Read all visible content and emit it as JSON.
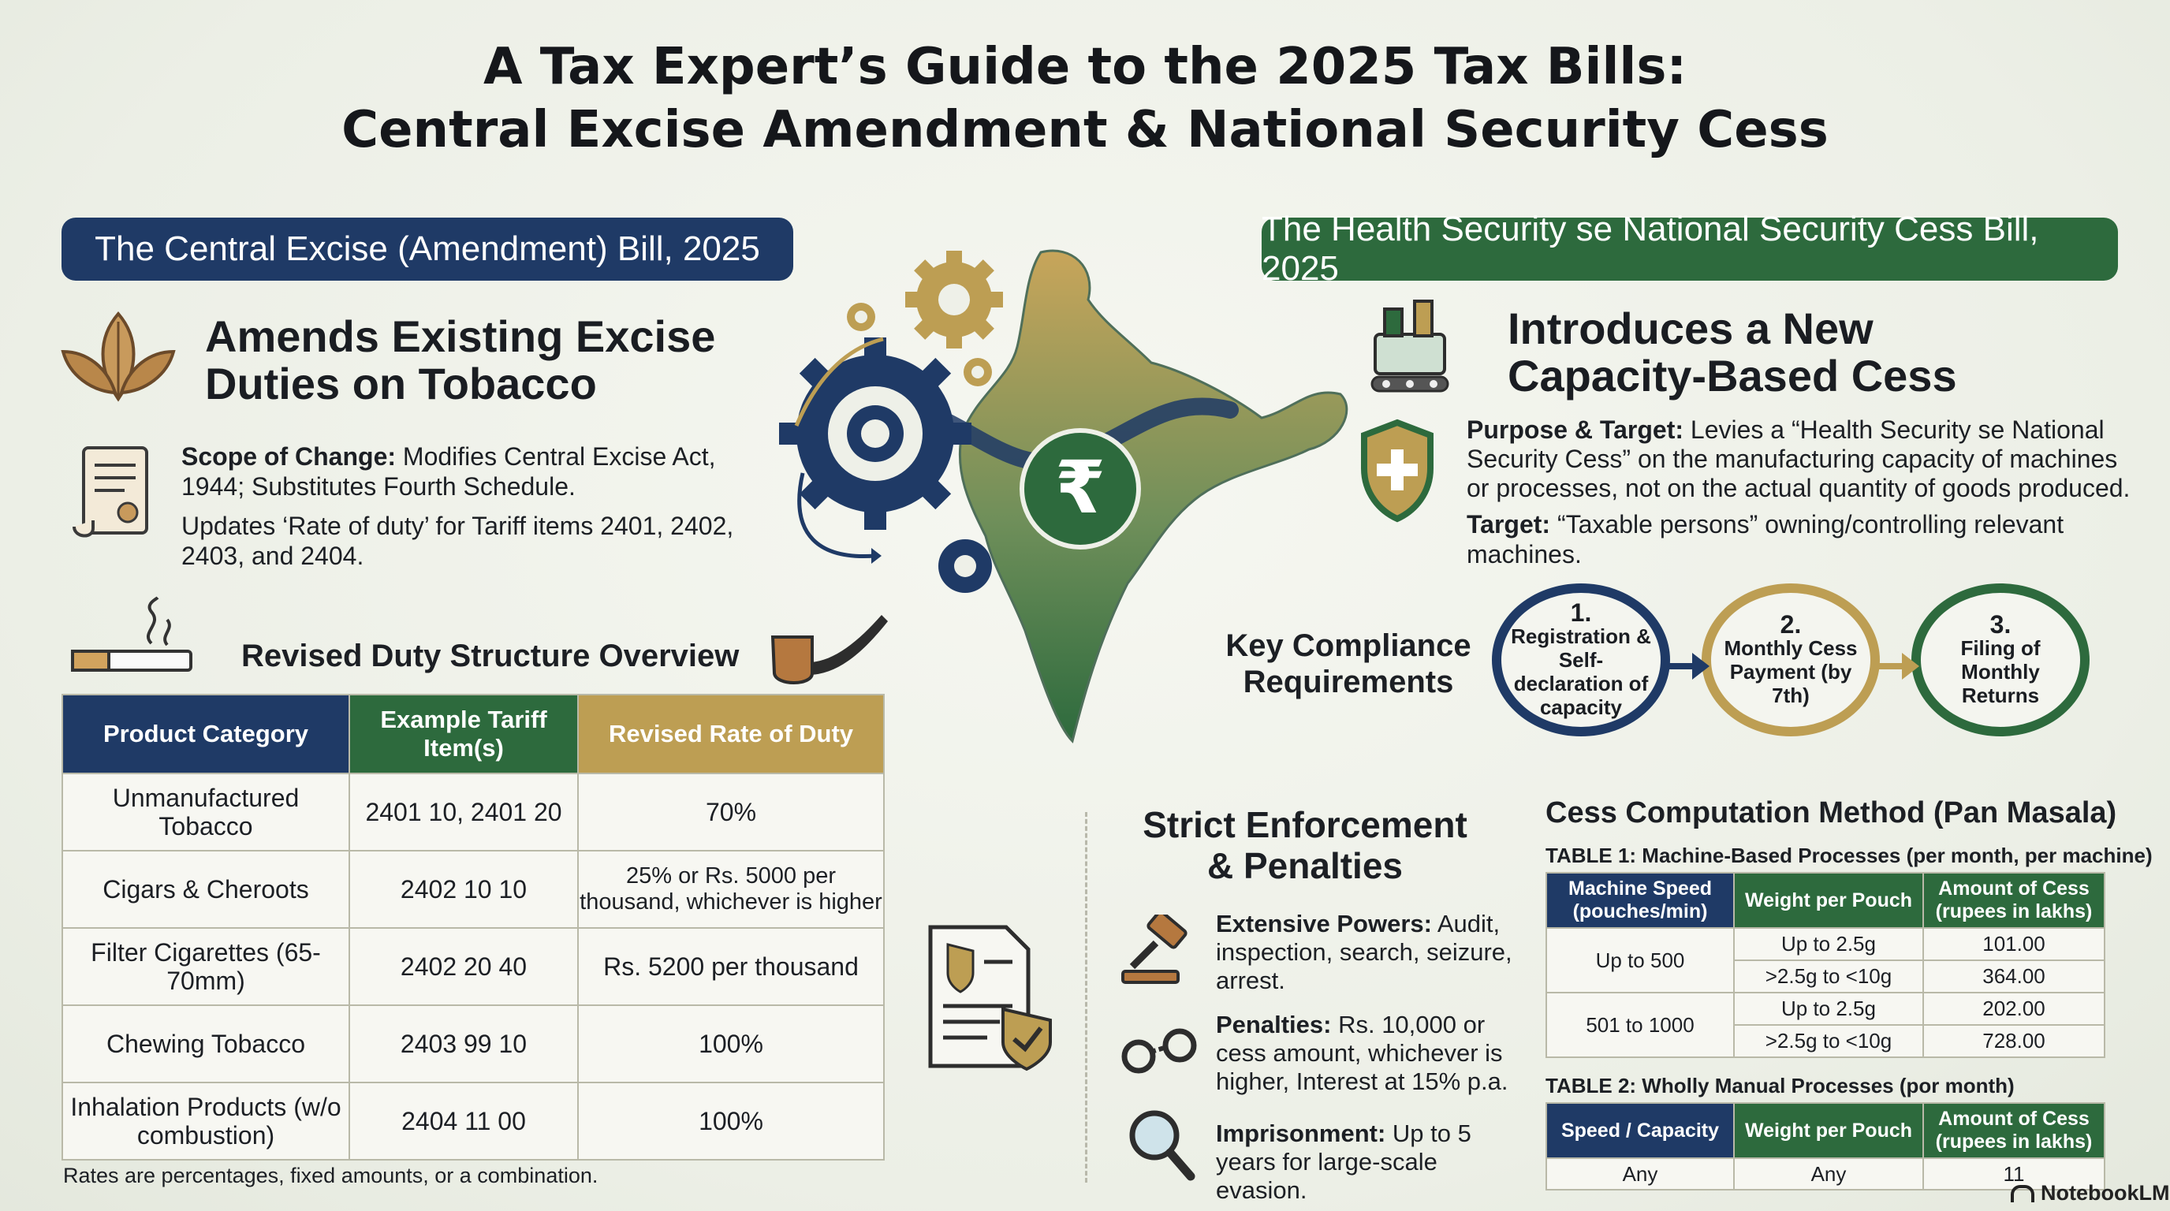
{
  "title": {
    "line1": "A Tax Expert’s Guide to the 2025 Tax Bills:",
    "line2": "Central Excise Amendment & National Security Cess"
  },
  "left": {
    "banner": "The Central Excise (Amendment) Bill, 2025",
    "heading": {
      "line1": "Amends Existing Excise",
      "line2": "Duties on Tobacco"
    },
    "scope_label": "Scope of Change:",
    "scope_text": "Modifies Central Excise Act,",
    "scope_text2": "1944; Substitutes Fourth Schedule.",
    "updates_line1": "Updates ‘Rate of duty’ for Tariff items 2401, 2402,",
    "updates_line2": "2403, and 2404.",
    "table_title": "Revised Duty Structure Overview",
    "table_headers": [
      "Product Category",
      "Example Tariff Item(s)",
      "Revised Rate of Duty"
    ],
    "table_rows": [
      {
        "category": "Unmanufactured Tobacco",
        "tariff": "2401 10, 2401 20",
        "rate": "70%"
      },
      {
        "category": "Cigars & Cheroots",
        "tariff": "2402 10 10",
        "rate": "25% or Rs. 5000 per thousand, whichever is higher"
      },
      {
        "category": "Filter Cigarettes (65-70mm)",
        "tariff": "2402 20 40",
        "rate": "Rs. 5200 per thousand"
      },
      {
        "category": "Chewing Tobacco",
        "tariff": "2403 99 10",
        "rate": "100%"
      },
      {
        "category": "Inhalation Products (w/o combustion)",
        "tariff": "2404 11 00",
        "rate": "100%"
      }
    ],
    "footnote": "Rates are percentages, fixed amounts, or a combination."
  },
  "right": {
    "banner": "The Health Security se National Security Cess Bill, 2025",
    "heading": {
      "line1": "Introduces a New",
      "line2": "Capacity-Based Cess"
    },
    "purpose_label": "Purpose & Target:",
    "purpose_l1": "Levies a “Health Security se National",
    "purpose_l2": "Security Cess” on the manufacturing capacity of machines",
    "purpose_l3": "or processes, not on the actual quantity of goods produced.",
    "target_label": "Target:",
    "target_text": "“Taxable persons” owning/controlling relevant machines.",
    "compliance_title": {
      "line1": "Key Compliance",
      "line2": "Requirements"
    },
    "steps": [
      {
        "num": "1.",
        "text": "Registration & Self-declaration of capacity"
      },
      {
        "num": "2.",
        "text": "Monthly Cess Payment (by 7th)"
      },
      {
        "num": "3.",
        "text": "Filing of Monthly Returns"
      }
    ],
    "enforcement_title": {
      "line1": "Strict Enforcement",
      "line2": "& Penalties"
    },
    "enforcement": [
      {
        "label": "Extensive Powers:",
        "text": "Audit, inspection, search, seizure, arrest."
      },
      {
        "label": "Penalties:",
        "text": "Rs. 10,000 or cess amount, whichever is higher, Interest at 15% p.a."
      },
      {
        "label": "Imprisonment:",
        "text": "Up to 5 years for large-scale evasion."
      }
    ],
    "cess_title": "Cess Computation Method (Pan Masala)",
    "table1_title": "TABLE 1: Machine-Based Processes (per month, per machine)",
    "table1_headers": [
      "Machine Speed (pouches/min)",
      "Weight per Pouch",
      "Amount of Cess (rupees in lakhs)"
    ],
    "table1_rows": [
      {
        "speed": "Up to 500",
        "weight": "Up to 2.5g",
        "amount": "101.00"
      },
      {
        "speed": "",
        "weight": ">2.5g to <10g",
        "amount": "364.00"
      },
      {
        "speed": "501 to 1000",
        "weight": "Up to 2.5g",
        "amount": "202.00"
      },
      {
        "speed": "",
        "weight": ">2.5g to <10g",
        "amount": "728.00"
      }
    ],
    "table2_title": "TABLE 2: Wholly Manual Processes (por month)",
    "table2_headers": [
      "Speed / Capacity",
      "Weight per Pouch",
      "Amount of Cess (rupees in lakhs)"
    ],
    "table2_rows": [
      {
        "speed": "Any",
        "weight": "Any",
        "amount": "11"
      }
    ]
  },
  "watermark": "NotebookLM",
  "colors": {
    "navy": "#1f3a66",
    "green": "#2d6a3d",
    "gold": "#bd9e53"
  }
}
